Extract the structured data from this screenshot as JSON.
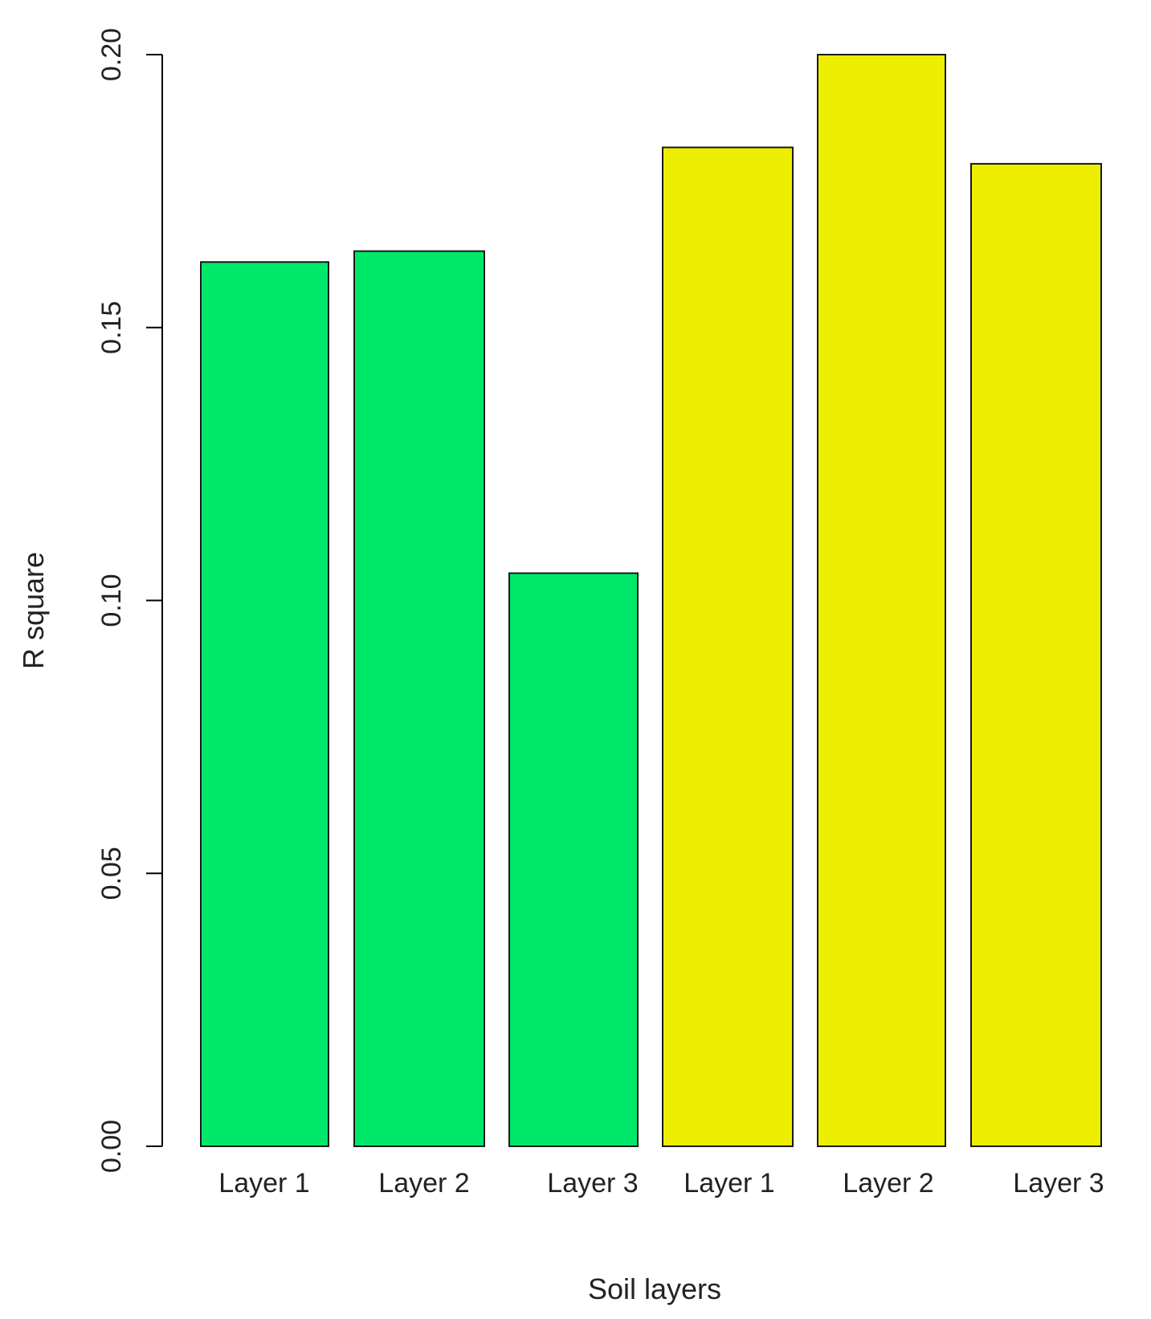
{
  "chart_data": {
    "type": "bar",
    "categories": [
      "Layer 1",
      "Layer 2",
      "Layer 3",
      "Layer 1",
      "Layer 2",
      "Layer 3"
    ],
    "values": [
      0.162,
      0.164,
      0.105,
      0.183,
      0.2,
      0.18
    ],
    "bar_colors": [
      "#00e86a",
      "#00e86a",
      "#00e86a",
      "#eeee00",
      "#eeee00",
      "#eeee00"
    ],
    "xlabel": "Soil layers",
    "ylabel": "R square",
    "ylim": [
      0,
      0.2
    ],
    "yticks": [
      "0.00",
      "0.05",
      "0.10",
      "0.15",
      "0.20"
    ],
    "ytick_values": [
      0,
      0.05,
      0.1,
      0.15,
      0.2
    ],
    "grid": false,
    "legend": "none"
  }
}
